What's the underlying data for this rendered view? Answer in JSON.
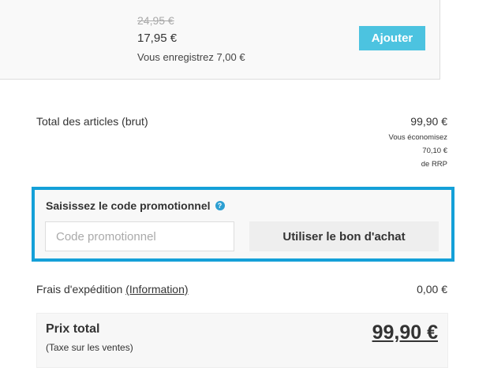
{
  "product": {
    "old_price": "24,95 €",
    "price": "17,95 €",
    "savings": "Vous enregistrez 7,00 €",
    "add_label": "Ajouter"
  },
  "subtotal": {
    "label": "Total des articles (brut)",
    "value": "99,90 €",
    "savings_lines": [
      "Vous économisez",
      "70,10 €",
      "de RRP"
    ]
  },
  "promo": {
    "title": "Saisissez le code promotionnel",
    "help_icon": "?",
    "placeholder": "Code promotionnel",
    "button": "Utiliser le bon d'achat",
    "border_color": "#14a0d8"
  },
  "shipping": {
    "label": "Frais d'expédition",
    "link": "(Information)",
    "value": "0,00 €"
  },
  "total": {
    "label": "Prix total",
    "tax": "(Taxe sur les ventes)",
    "value": "99,90 €"
  }
}
